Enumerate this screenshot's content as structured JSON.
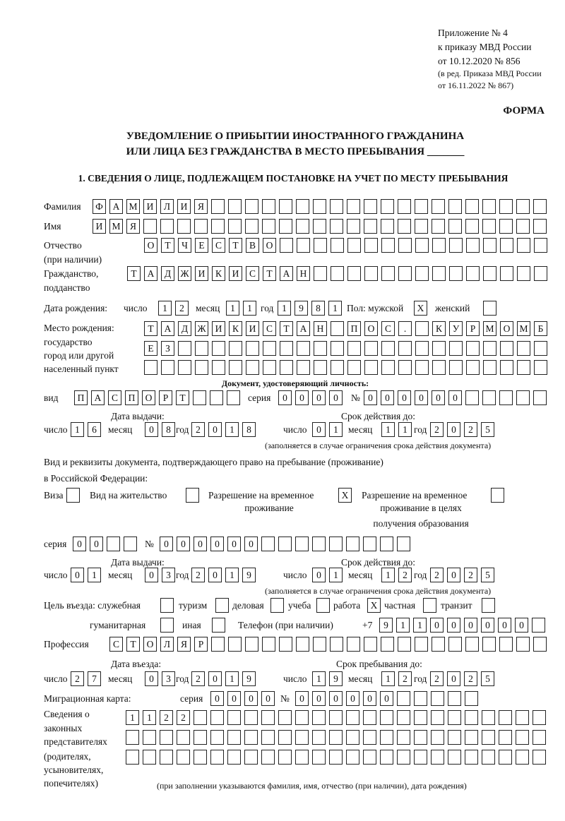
{
  "header": {
    "line1": "Приложение № 4",
    "line2": "к приказу МВД России",
    "line3": "от 10.12.2020 № 856",
    "line4": "(в ред. Приказа МВД России",
    "line5": "от 16.11.2022 № 867)",
    "form_label": "ФОРМА"
  },
  "title": {
    "line1": "УВЕДОМЛЕНИЕ О ПРИБЫТИИ ИНОСТРАННОГО ГРАЖДАНИНА",
    "line2": "ИЛИ ЛИЦА БЕЗ ГРАЖДАНСТВА В МЕСТО ПРЕБЫВАНИЯ _______"
  },
  "section1": {
    "heading": "1. СВЕДЕНИЯ О ЛИЦЕ, ПОДЛЕЖАЩЕМ ПОСТАНОВКЕ НА УЧЕТ ПО МЕСТУ ПРЕБЫВАНИЯ",
    "surname": {
      "label": "Фамилия",
      "value": "ФАМИЛИЯ"
    },
    "name": {
      "label": "Имя",
      "value": "ИМЯ"
    },
    "patronymic": {
      "label": "Отчество",
      "label2": "(при наличии)",
      "value": "ОТЧЕСТВО"
    },
    "citizenship": {
      "label": "Гражданство,",
      "label2": "подданство",
      "value": "ТАДЖИКИСТАН"
    },
    "birth_date": {
      "label": "Дата рождения:",
      "day_label": "число",
      "day": "12",
      "month_label": "месяц",
      "month": "11",
      "year_label": "год",
      "year": "1981"
    },
    "sex": {
      "label": "Пол: мужской",
      "male": "X",
      "female_label": "женский",
      "female": ""
    },
    "birth_place": {
      "label1": "Место рождения:",
      "label2": "государство",
      "label3": "город или другой",
      "label4": "населенный пункт",
      "row1": "ТАДЖИКИСТАН ПОС. КУРМОМБ",
      "row2": "ЕЗ",
      "row3": ""
    },
    "identity_doc": {
      "heading": "Документ, удостоверяющий личность:",
      "kind_label": "вид",
      "kind": "ПАСПОРТ",
      "series_label": "серия",
      "series": "0000",
      "number_label": "№",
      "number": "000000",
      "issue_label": "Дата выдачи:",
      "valid_label": "Срок действия до:",
      "day_label": "число",
      "month_label": "месяц",
      "year_label": "год",
      "issue_day": "16",
      "issue_month": "08",
      "issue_year": "2018",
      "valid_day": "01",
      "valid_month": "11",
      "valid_year": "2025",
      "note": "(заполняется в случае ограничения срока действия документа)"
    },
    "stay_doc": {
      "heading1": "Вид и реквизиты документа, подтверждающего право на пребывание (проживание)",
      "heading2": "в Российской Федерации:",
      "visa_label": "Виза",
      "visa": "",
      "residence_label": "Вид на жительство",
      "residence": "",
      "temp_label1": "Разрешение на временное",
      "temp_label2": "проживание",
      "temp": "X",
      "edu_label1": "Разрешение на временное",
      "edu_label2": "проживание в целях",
      "edu_label3": "получения образования",
      "edu": "",
      "series_label": "серия",
      "series": "00",
      "number_label": "№",
      "number": "000000",
      "issue_label": "Дата выдачи:",
      "valid_label": "Срок действия до:",
      "day_label": "число",
      "month_label": "месяц",
      "year_label": "год",
      "issue_day": "01",
      "issue_month": "03",
      "issue_year": "2019",
      "valid_day": "01",
      "valid_month": "12",
      "valid_year": "2025",
      "note": "(заполняется в случае ограничения срока действия документа)"
    },
    "purpose": {
      "label": "Цель въезда: служебная",
      "official": "",
      "tourism_label": "туризм",
      "tourism": "",
      "business_label": "деловая",
      "business": "",
      "study_label": "учеба",
      "study": "",
      "work_label": "работа",
      "work": "X",
      "private_label": "частная",
      "private": "",
      "transit_label": "транзит",
      "transit": "",
      "humanitarian_label": "гуманитарная",
      "humanitarian": "",
      "other_label": "иная",
      "other": ""
    },
    "phone": {
      "label": "Телефон (при наличии)",
      "prefix": "+7",
      "value": "911000000"
    },
    "profession": {
      "label": "Профессия",
      "value": "СТОЛЯР"
    },
    "entry": {
      "entry_label": "Дата въезда:",
      "stay_label": "Срок пребывания до:",
      "day_label": "число",
      "month_label": "месяц",
      "year_label": "год",
      "entry_day": "27",
      "entry_month": "03",
      "entry_year": "2019",
      "stay_day": "19",
      "stay_month": "12",
      "stay_year": "2025"
    },
    "migration_card": {
      "label": "Миграционная карта:",
      "series_label": "серия",
      "series": "0000",
      "number_label": "№",
      "number": "000000"
    },
    "representatives": {
      "label1": "Сведения о",
      "label2": "законных",
      "label3": "представителях",
      "label4": "(родителях,",
      "label5": "усыновителях,",
      "label6": "попечителях)",
      "row1": "1122",
      "row2": "",
      "row3": "",
      "note": "(при заполнении указываются фамилия, имя, отчество (при наличии), дата рождения)"
    }
  }
}
